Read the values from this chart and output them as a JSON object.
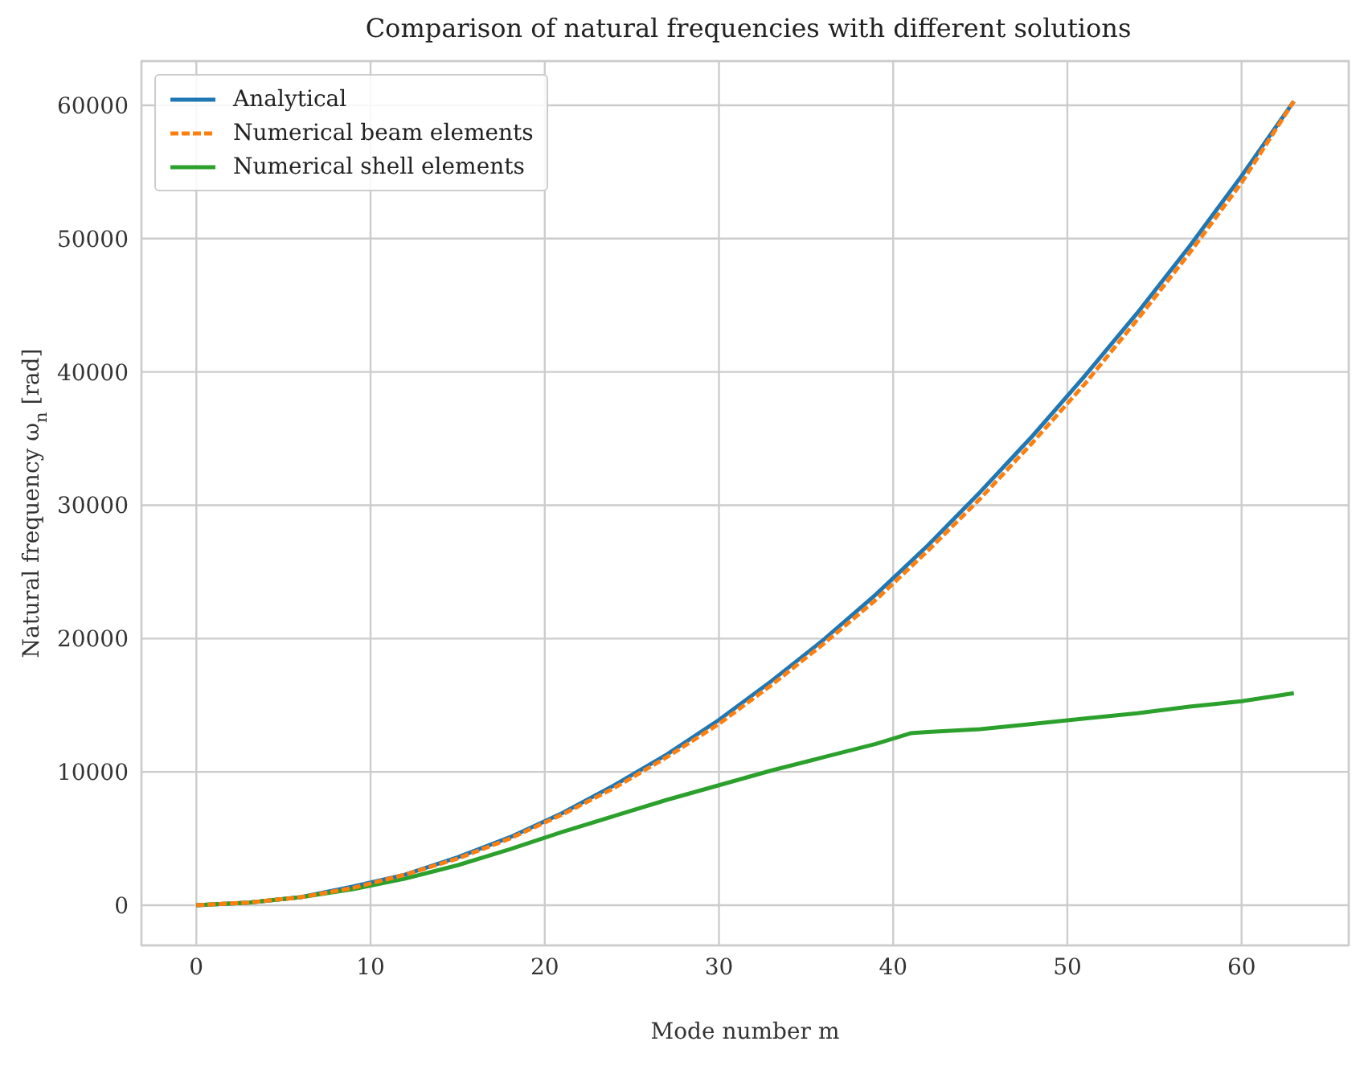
{
  "chart_data": {
    "type": "line",
    "title": "Comparison of natural frequencies with different solutions",
    "xlabel": "Mode number m",
    "ylabel": "Natural frequency ω$_{n}$ [rad]",
    "xlim": [
      -3.15,
      66.15
    ],
    "ylim": [
      -3015,
      63315
    ],
    "xticks": [
      0,
      10,
      20,
      30,
      40,
      50,
      60
    ],
    "yticks": [
      0,
      10000,
      20000,
      30000,
      40000,
      50000,
      60000
    ],
    "grid": true,
    "legend": "top left",
    "marker": "none",
    "series": [
      {
        "name": "Analytical",
        "color": "#1f77b4",
        "line_style": "solid",
        "x": [
          0,
          3,
          6,
          9,
          12,
          15,
          18,
          21,
          24,
          27,
          30,
          33,
          36,
          39,
          42,
          45,
          48,
          51,
          54,
          57,
          60,
          63
        ],
        "values": [
          0,
          200,
          600,
          1400,
          2300,
          3600,
          5100,
          6900,
          9000,
          11300,
          13900,
          16800,
          19900,
          23300,
          27000,
          31000,
          35200,
          39700,
          44400,
          49400,
          54700,
          60300
        ]
      },
      {
        "name": "Numerical beam elements",
        "color": "#ff7f0e",
        "line_style": "dashed",
        "x": [
          0,
          3,
          6,
          9,
          12,
          15,
          18,
          21,
          24,
          27,
          30,
          33,
          36,
          39,
          42,
          45,
          48,
          51,
          54,
          57,
          60,
          63
        ],
        "values": [
          0,
          200,
          600,
          1300,
          2300,
          3500,
          5000,
          6800,
          8800,
          11100,
          13600,
          16500,
          19600,
          22900,
          26600,
          30500,
          34700,
          39100,
          43900,
          48900,
          54200,
          60300
        ]
      },
      {
        "name": "Numerical shell elements",
        "color": "#2ca02c",
        "line_style": "solid",
        "x": [
          0,
          3,
          6,
          9,
          12,
          15,
          18,
          21,
          24,
          27,
          30,
          33,
          36,
          39,
          41,
          42,
          45,
          48,
          51,
          54,
          57,
          60,
          63
        ],
        "values": [
          0,
          200,
          600,
          1200,
          2000,
          3000,
          4200,
          5500,
          6700,
          7900,
          9000,
          10100,
          11100,
          12100,
          12900,
          13000,
          13200,
          13600,
          14000,
          14400,
          14900,
          15300,
          15900
        ]
      }
    ]
  }
}
